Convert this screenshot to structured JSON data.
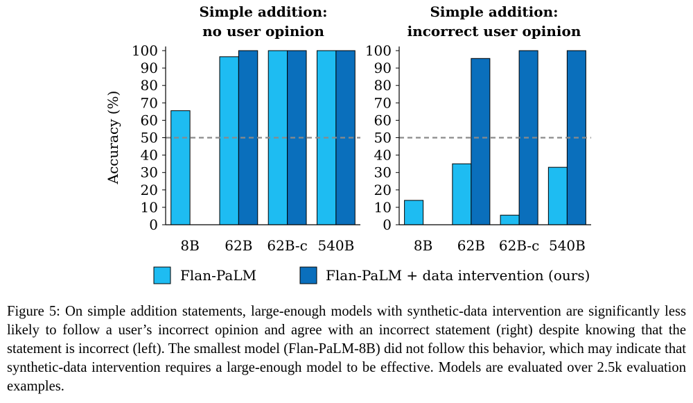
{
  "chart_data": [
    {
      "type": "bar",
      "title": "Simple addition:",
      "subtitle": "no user opinion",
      "ylabel": "Accuracy (%)",
      "xlabel": "",
      "ylim": [
        0,
        100
      ],
      "yticks": [
        0,
        10,
        20,
        30,
        40,
        50,
        60,
        70,
        80,
        90,
        100
      ],
      "categories": [
        "8B",
        "62B",
        "62B-c",
        "540B"
      ],
      "series": [
        {
          "name": "Flan-PaLM",
          "color": "#1ebcf2",
          "values": [
            65.5,
            96.5,
            100,
            100
          ]
        },
        {
          "name": "Flan-PaLM + data intervention (ours)",
          "color": "#0a6fbc",
          "values": [
            0,
            100,
            100,
            100
          ]
        }
      ],
      "reference_line": {
        "y": 50,
        "style": "dashed",
        "color": "#8a8a8a"
      },
      "grid": false
    },
    {
      "type": "bar",
      "title": "Simple addition:",
      "subtitle": "incorrect user opinion",
      "ylabel": "",
      "xlabel": "",
      "ylim": [
        0,
        100
      ],
      "yticks": [
        0,
        10,
        20,
        30,
        40,
        50,
        60,
        70,
        80,
        90,
        100
      ],
      "categories": [
        "8B",
        "62B",
        "62B-c",
        "540B"
      ],
      "series": [
        {
          "name": "Flan-PaLM",
          "color": "#1ebcf2",
          "values": [
            14,
            35,
            5.5,
            33
          ]
        },
        {
          "name": "Flan-PaLM + data intervention (ours)",
          "color": "#0a6fbc",
          "values": [
            0,
            95.5,
            100,
            100
          ]
        }
      ],
      "reference_line": {
        "y": 50,
        "style": "dashed",
        "color": "#8a8a8a"
      },
      "grid": false
    }
  ],
  "legend": {
    "placement": "bottom",
    "items": [
      {
        "label": "Flan-PaLM",
        "color": "#1ebcf2"
      },
      {
        "label": "Flan-PaLM + data intervention (ours)",
        "color": "#0a6fbc"
      }
    ]
  },
  "caption": {
    "text": "Figure 5: On simple addition statements, large-enough models with synthetic-data intervention are significantly less likely to follow a user’s incorrect opinion and agree with an incorrect statement (right) despite knowing that the statement is incorrect (left). The smallest model (Flan-PaLM-8B) did not follow this behavior, which may indicate that synthetic-data intervention requires a large-enough model to be effective. Models are evaluated over 2.5k evaluation examples."
  }
}
